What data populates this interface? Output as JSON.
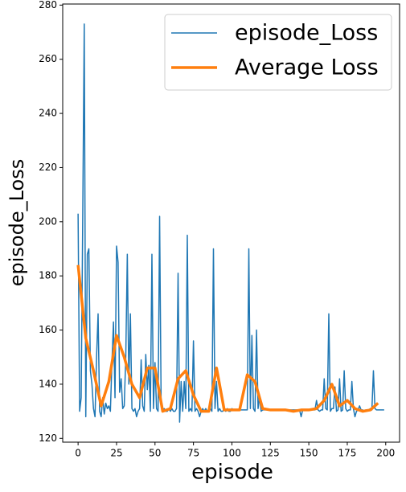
{
  "chart_data": {
    "type": "line",
    "xlabel": "episode",
    "ylabel": "episode_Loss",
    "xlim": [
      -10,
      209
    ],
    "ylim": [
      118.6,
      280.4
    ],
    "xticks": [
      0,
      25,
      50,
      75,
      100,
      125,
      150,
      175,
      200
    ],
    "yticks": [
      120,
      140,
      160,
      180,
      200,
      220,
      240,
      260,
      280
    ],
    "legend": "upper right",
    "series": [
      {
        "name": "episode_Loss",
        "color": "#1f77b4",
        "width": 1.5,
        "x": [
          0,
          1,
          2,
          3,
          4,
          5,
          6,
          7,
          8,
          9,
          10,
          11,
          12,
          13,
          14,
          15,
          16,
          17,
          18,
          19,
          20,
          21,
          22,
          23,
          24,
          25,
          26,
          27,
          28,
          29,
          30,
          31,
          32,
          33,
          34,
          35,
          36,
          37,
          38,
          39,
          40,
          41,
          42,
          43,
          44,
          45,
          46,
          47,
          48,
          49,
          50,
          51,
          52,
          53,
          54,
          55,
          56,
          57,
          58,
          59,
          60,
          61,
          62,
          63,
          64,
          65,
          66,
          67,
          68,
          69,
          70,
          71,
          72,
          73,
          74,
          75,
          76,
          77,
          78,
          79,
          80,
          81,
          82,
          83,
          84,
          85,
          86,
          87,
          88,
          89,
          90,
          91,
          92,
          93,
          94,
          95,
          96,
          97,
          98,
          99,
          100,
          101,
          102,
          103,
          104,
          105,
          106,
          107,
          108,
          109,
          110,
          111,
          112,
          113,
          114,
          115,
          116,
          117,
          118,
          119,
          120,
          121,
          122,
          123,
          124,
          125,
          126,
          127,
          128,
          129,
          130,
          131,
          132,
          133,
          134,
          135,
          136,
          137,
          138,
          139,
          140,
          141,
          142,
          143,
          144,
          145,
          146,
          147,
          148,
          149,
          150,
          151,
          152,
          153,
          154,
          155,
          156,
          157,
          158,
          159,
          160,
          161,
          162,
          163,
          164,
          165,
          166,
          167,
          168,
          169,
          170,
          171,
          172,
          173,
          174,
          175,
          176,
          177,
          178,
          179,
          180,
          181,
          182,
          183,
          184,
          185,
          186,
          187,
          188,
          189,
          190,
          191,
          192,
          193,
          194,
          195,
          196,
          197,
          198,
          199
        ],
        "values": [
          203,
          130,
          135,
          200,
          273,
          128,
          188,
          190,
          145,
          140,
          131,
          128,
          150,
          166,
          130,
          128,
          135,
          129,
          133,
          131,
          132,
          130,
          148,
          163,
          135,
          191,
          185,
          137,
          142,
          131,
          132,
          150,
          188,
          140,
          166,
          131,
          130,
          131,
          128,
          130,
          131,
          149,
          132,
          130,
          151,
          138,
          147,
          130,
          188,
          131,
          148,
          131,
          130,
          202,
          132,
          130,
          131,
          130,
          130,
          131,
          130,
          131,
          130,
          130,
          131,
          181,
          126,
          141,
          130,
          141,
          131,
          195,
          130,
          131,
          130,
          156,
          130,
          131,
          130,
          128,
          130,
          131,
          130,
          131,
          130,
          130,
          131,
          130,
          190,
          131,
          141,
          130,
          131,
          130,
          130,
          131,
          130,
          131,
          130,
          130,
          131,
          130.5,
          130.5,
          130.5,
          130.5,
          130.5,
          130.5,
          130.5,
          130.5,
          130.5,
          130.5,
          190,
          131,
          158,
          131,
          130,
          160,
          131,
          135,
          130,
          130.5,
          130.5,
          130.5,
          130.5,
          130.5,
          130.5,
          130.5,
          130.5,
          130.5,
          130.5,
          130.5,
          130.5,
          130.5,
          130.5,
          130.5,
          130.5,
          130.5,
          130.5,
          130.5,
          130.5,
          130.5,
          130.5,
          130.5,
          130.5,
          130.5,
          128,
          130.5,
          130.5,
          130.5,
          130.5,
          130.5,
          130.5,
          130.5,
          130.5,
          130.5,
          134,
          130.5,
          130,
          130.5,
          130.5,
          142,
          131,
          130.5,
          166,
          130,
          131,
          131,
          139,
          130,
          130.5,
          142,
          130,
          130.5,
          145,
          131,
          130,
          130.5,
          130.5,
          141,
          131,
          128,
          130,
          130.5,
          132,
          130.5,
          130.5,
          130,
          130.5,
          130.5,
          130.5,
          131,
          130.5,
          145,
          131,
          130.5,
          130.5,
          130.5,
          130.5,
          130.5,
          130.5
        ]
      },
      {
        "name": "Average Loss",
        "color": "#ff7f0e",
        "width": 3.5,
        "x": [
          0,
          5,
          10,
          15,
          20,
          25,
          30,
          35,
          40,
          45,
          50,
          55,
          60,
          65,
          70,
          75,
          80,
          85,
          90,
          95,
          100,
          105,
          110,
          115,
          120,
          125,
          130,
          135,
          140,
          145,
          150,
          155,
          160,
          165,
          170,
          175,
          180,
          185,
          190,
          195
        ],
        "values": [
          184,
          157,
          145,
          132,
          141,
          158,
          150,
          140,
          135,
          146,
          146,
          130,
          131,
          142,
          145,
          136,
          130,
          130,
          146,
          130.5,
          130.5,
          130.5,
          143.5,
          141,
          131,
          130.5,
          130.5,
          130.5,
          130,
          130.5,
          130.5,
          131,
          134,
          140,
          132,
          134,
          131,
          130,
          130.5,
          133
        ]
      }
    ]
  }
}
